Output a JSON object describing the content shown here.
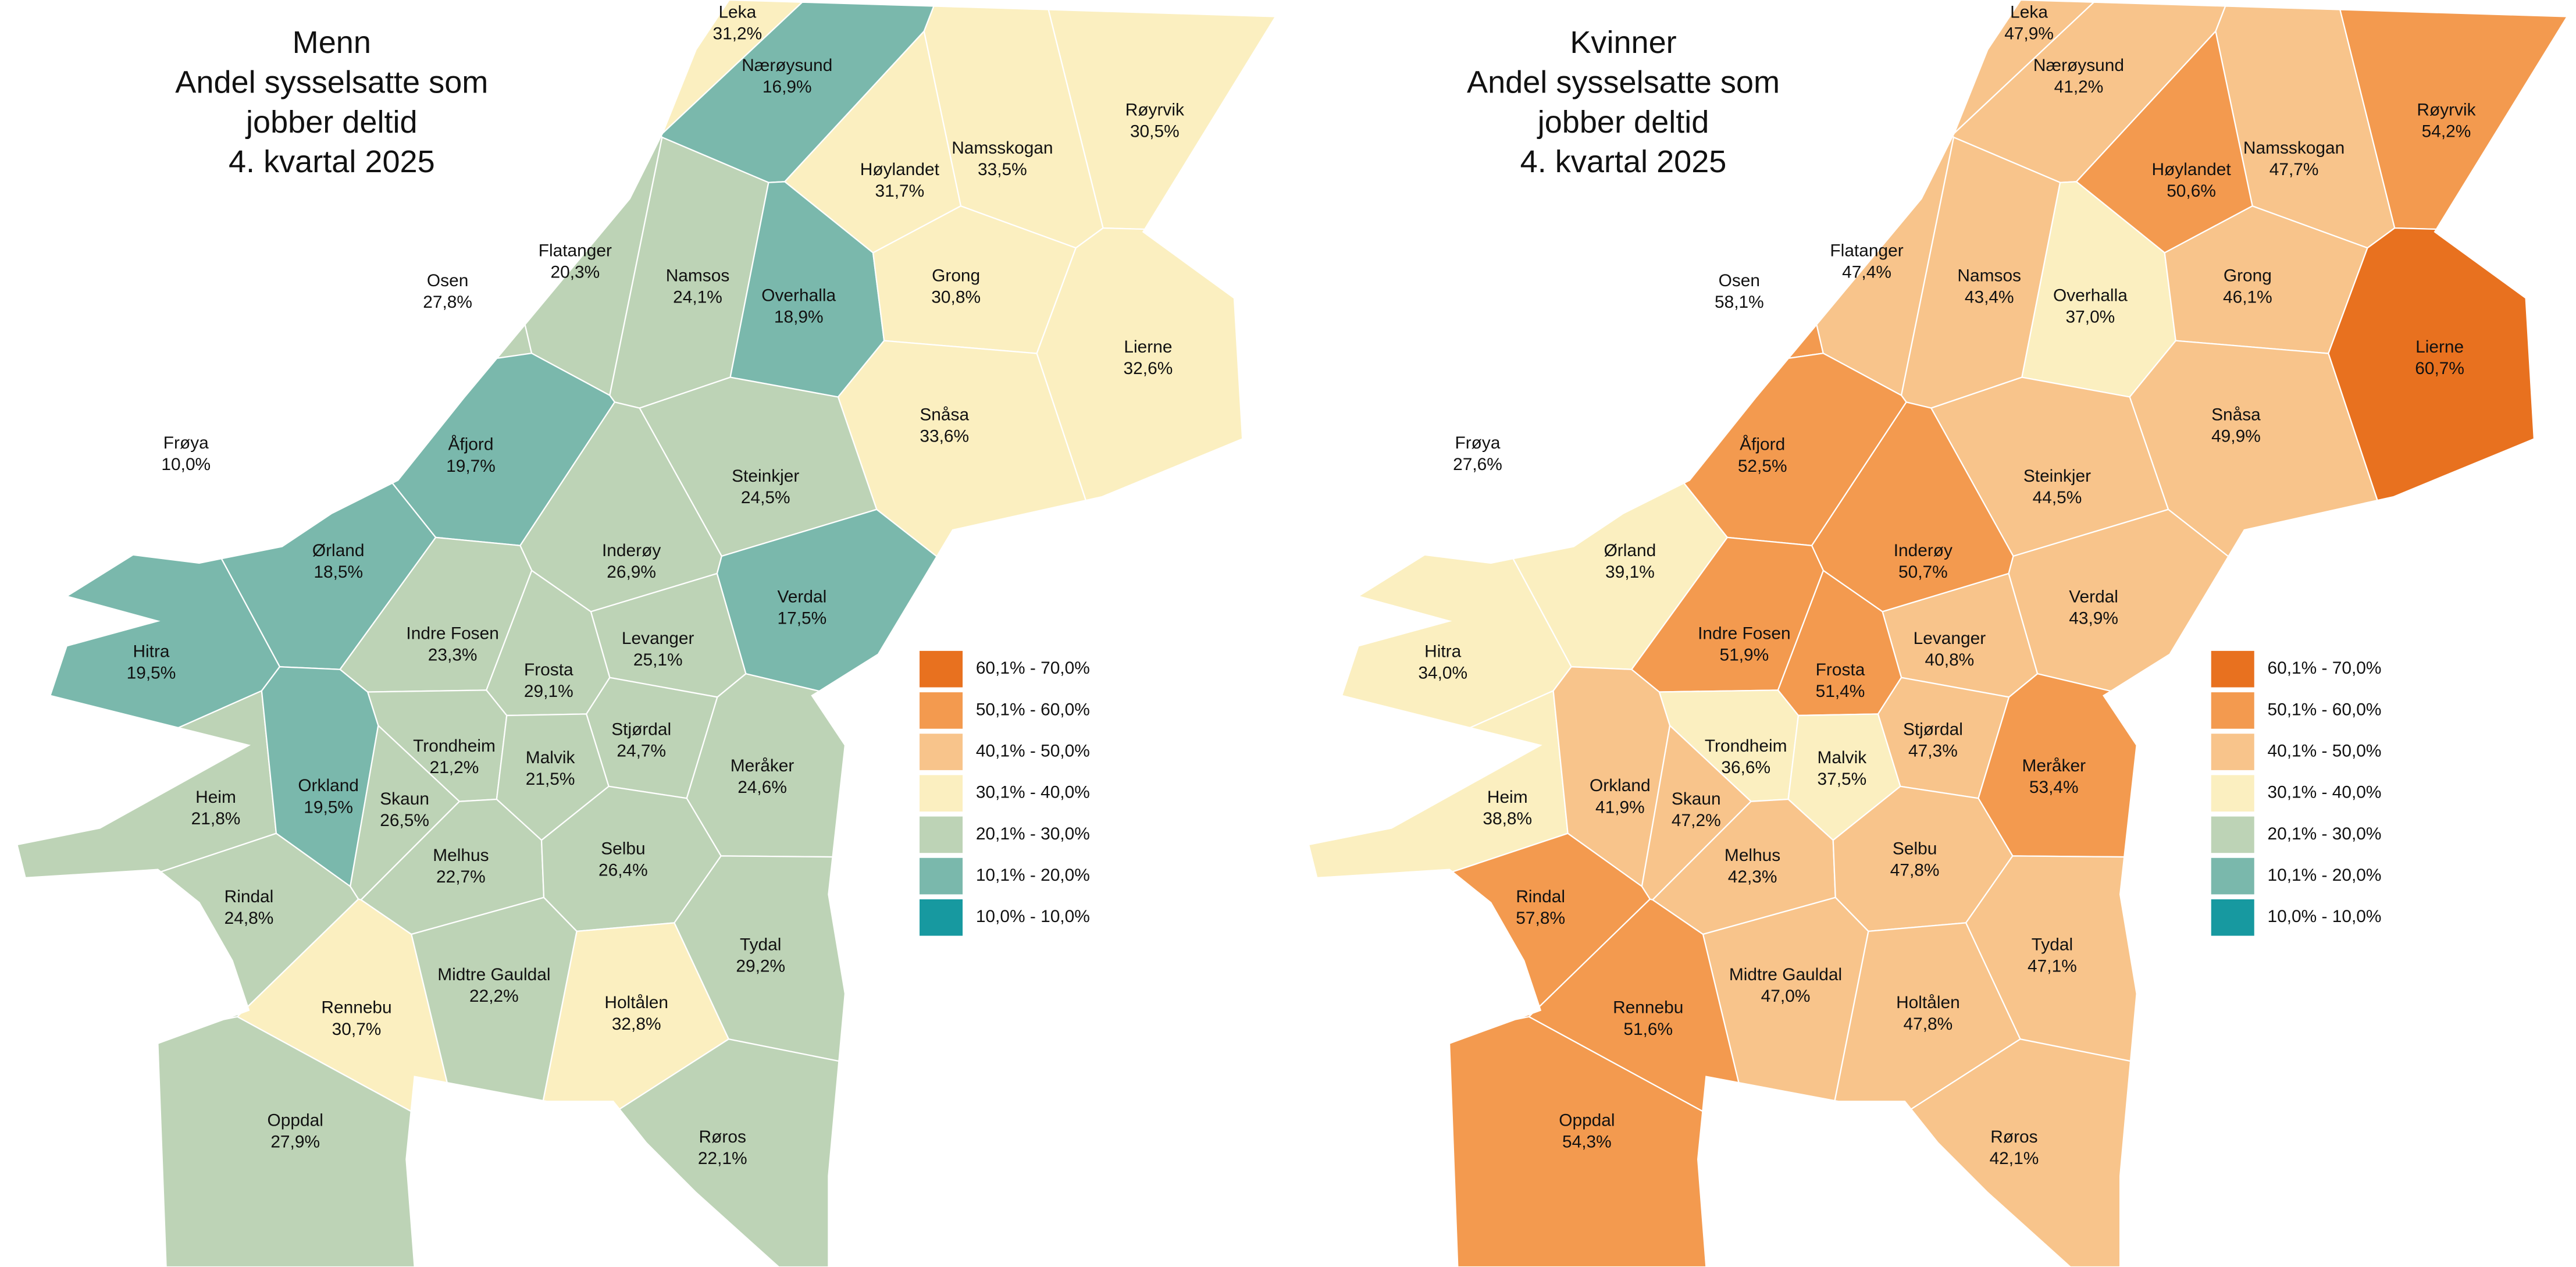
{
  "municipalities": [
    "Leka",
    "Nærøysund",
    "Røyrvik",
    "Namsskogan",
    "Høylandet",
    "Flatanger",
    "Osen",
    "Namsos",
    "Overhalla",
    "Grong",
    "Lierne",
    "Snåsa",
    "Frøya",
    "Åfjord",
    "Steinkjer",
    "Ørland",
    "Inderøy",
    "Verdal",
    "Indre Fosen",
    "Levanger",
    "Hitra",
    "Frosta",
    "Stjørdal",
    "Trondheim",
    "Malvik",
    "Meråker",
    "Heim",
    "Orkland",
    "Skaun",
    "Melhus",
    "Selbu",
    "Rindal",
    "Tydal",
    "Midtre Gauldal",
    "Rennebu",
    "Holtålen",
    "Oppdal",
    "Røros"
  ],
  "legend": [
    {
      "label": "60,1% - 70,0%",
      "min": 60.1,
      "max": 70.0,
      "color": "#e8711f"
    },
    {
      "label": "50,1% - 60,0%",
      "min": 50.1,
      "max": 60.0,
      "color": "#f39a4f"
    },
    {
      "label": "40,1% - 50,0%",
      "min": 40.1,
      "max": 50.0,
      "color": "#f8c48b"
    },
    {
      "label": "30,1% - 40,0%",
      "min": 30.1,
      "max": 40.0,
      "color": "#fbefc0"
    },
    {
      "label": "20,1% - 30,0%",
      "min": 20.1,
      "max": 30.0,
      "color": "#bdd3b6"
    },
    {
      "label": "10,1% - 20,0%",
      "min": 10.1,
      "max": 20.0,
      "color": "#7ab8ac"
    },
    {
      "label": "10,0% - 10,0%",
      "min": 10.0,
      "max": 10.0,
      "color": "#1799a0"
    }
  ],
  "maps": [
    {
      "title": [
        "Menn",
        "Andel sysselsatte som",
        "jobber deltid",
        "4. kvartal 2025"
      ],
      "values": [
        31.2,
        16.9,
        30.5,
        33.5,
        31.7,
        20.3,
        27.8,
        24.1,
        18.9,
        30.8,
        32.6,
        33.6,
        10.0,
        19.7,
        24.5,
        18.5,
        26.9,
        17.5,
        23.3,
        25.1,
        19.5,
        29.1,
        24.7,
        21.2,
        21.5,
        24.6,
        21.8,
        19.5,
        26.5,
        22.7,
        26.4,
        24.8,
        29.2,
        22.2,
        30.7,
        32.8,
        27.9,
        22.1
      ],
      "value_labels": [
        "31,2%",
        "16,9%",
        "30,5%",
        "33,5%",
        "31,7%",
        "20,3%",
        "27,8%",
        "24,1%",
        "18,9%",
        "30,8%",
        "32,6%",
        "33,6%",
        "10,0%",
        "19,7%",
        "24,5%",
        "18,5%",
        "26,9%",
        "17,5%",
        "23,3%",
        "25,1%",
        "19,5%",
        "29,1%",
        "24,7%",
        "21,2%",
        "21,5%",
        "24,6%",
        "21,8%",
        "19,5%",
        "26,5%",
        "22,7%",
        "26,4%",
        "24,8%",
        "29,2%",
        "22,2%",
        "30,7%",
        "32,8%",
        "27,9%",
        "22,1%"
      ]
    },
    {
      "title": [
        "Kvinner",
        "Andel sysselsatte som",
        "jobber deltid",
        "4. kvartal 2025"
      ],
      "values": [
        47.9,
        41.2,
        54.2,
        47.7,
        50.6,
        47.4,
        58.1,
        43.4,
        37.0,
        46.1,
        60.7,
        49.9,
        27.6,
        52.5,
        44.5,
        39.1,
        50.7,
        43.9,
        51.9,
        40.8,
        34.0,
        51.4,
        47.3,
        36.6,
        37.5,
        53.4,
        38.8,
        41.9,
        47.2,
        42.3,
        47.8,
        57.8,
        47.1,
        47.0,
        51.6,
        47.8,
        54.3,
        42.1
      ],
      "value_labels": [
        "47,9%",
        "41,2%",
        "54,2%",
        "47,7%",
        "50,6%",
        "47,4%",
        "58,1%",
        "43,4%",
        "37,0%",
        "46,1%",
        "60,7%",
        "49,9%",
        "27,6%",
        "52,5%",
        "44,5%",
        "39,1%",
        "50,7%",
        "43,9%",
        "51,9%",
        "40,8%",
        "34,0%",
        "51,4%",
        "47,3%",
        "36,6%",
        "37,5%",
        "53,4%",
        "38,8%",
        "41,9%",
        "47,2%",
        "42,3%",
        "47,8%",
        "57,8%",
        "47,1%",
        "47,0%",
        "51,6%",
        "47,8%",
        "54,3%",
        "42,1%"
      ]
    }
  ]
}
